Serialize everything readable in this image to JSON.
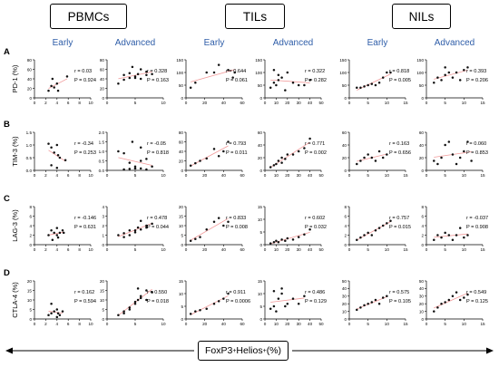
{
  "groups": {
    "g1": "PBMCs",
    "g2": "TILs",
    "g3": "NILs"
  },
  "stages": [
    "Early",
    "Advanced",
    "Early",
    "Advanced",
    "Early",
    "Advanced"
  ],
  "row_letters": [
    "A",
    "B",
    "C",
    "D"
  ],
  "row_ylabels": [
    "PD-1 (%)",
    "TIM-3 (%)",
    "LAG-3 (%)",
    "CTLA-4 (%)"
  ],
  "xaxis": {
    "label": "FoxP3",
    "sup1": "+",
    "mid": "Helios",
    "sup2": "+",
    "unit": " (%)"
  },
  "colors": {
    "stage_text": "#2e5da8",
    "fit_line": "#f29a9a",
    "points": "#111111"
  },
  "chart_data": [
    {
      "type": "scatter",
      "group": "PBMCs",
      "stage": "Early",
      "ylabel": "PD-1 (%)",
      "xticks": [
        "0",
        "2",
        "4",
        "6",
        "8",
        "10"
      ],
      "yticks": [
        "0",
        "20",
        "40",
        "60",
        "80"
      ],
      "xlim": [
        0,
        10
      ],
      "ylim": [
        0,
        80
      ],
      "r": "r = 0.03",
      "p": "P = 0.924",
      "x": [
        2.5,
        3,
        3.5,
        4,
        4.2,
        3.2,
        5.8
      ],
      "y": [
        15,
        25,
        22,
        30,
        15,
        40,
        45
      ]
    },
    {
      "type": "scatter",
      "group": "PBMCs",
      "stage": "Advanced",
      "ylabel": "PD-1 (%)",
      "xticks": [
        "0",
        "5",
        "10"
      ],
      "yticks": [
        "0",
        "20",
        "40",
        "60",
        "80"
      ],
      "xlim": [
        0,
        10
      ],
      "ylim": [
        0,
        80
      ],
      "r": "r = 0.328",
      "p": "P = 0.163",
      "x": [
        2,
        3,
        4,
        5,
        5.5,
        6,
        7,
        3,
        4,
        5,
        6,
        7,
        8,
        4.5
      ],
      "y": [
        30,
        38,
        42,
        45,
        50,
        40,
        55,
        48,
        52,
        42,
        60,
        48,
        50,
        65
      ]
    },
    {
      "type": "scatter",
      "group": "TILs",
      "stage": "Early",
      "ylabel": "PD-1 (%)",
      "xticks": [
        "0",
        "20",
        "40",
        "60"
      ],
      "yticks": [
        "0",
        "50",
        "100",
        "150"
      ],
      "xlim": [
        0,
        60
      ],
      "ylim": [
        0,
        150
      ],
      "r": "r = 0.644",
      "p": "P = 0.061",
      "x": [
        5,
        10,
        22,
        30,
        45,
        50,
        52,
        35
      ],
      "y": [
        40,
        60,
        100,
        100,
        110,
        80,
        100,
        130
      ]
    },
    {
      "type": "scatter",
      "group": "TILs",
      "stage": "Advanced",
      "ylabel": "PD-1 (%)",
      "xticks": [
        "0",
        "10",
        "20",
        "30",
        "40",
        "50"
      ],
      "yticks": [
        "0",
        "50",
        "100",
        "150"
      ],
      "xlim": [
        0,
        50
      ],
      "ylim": [
        0,
        150
      ],
      "r": "r = 0.322",
      "p": "P = 0.282",
      "x": [
        5,
        8,
        10,
        12,
        15,
        18,
        20,
        25,
        30,
        35,
        40,
        8,
        12
      ],
      "y": [
        40,
        60,
        50,
        90,
        80,
        30,
        100,
        60,
        50,
        50,
        70,
        110,
        70
      ]
    },
    {
      "type": "scatter",
      "group": "NILs",
      "stage": "Early",
      "ylabel": "PD-1 (%)",
      "xticks": [
        "0",
        "5",
        "10",
        "15"
      ],
      "yticks": [
        "0",
        "50",
        "100",
        "150"
      ],
      "xlim": [
        0,
        15
      ],
      "ylim": [
        0,
        150
      ],
      "r": "r = 0.818",
      "p": "P = 0.005",
      "x": [
        2,
        3,
        4,
        5,
        6,
        7,
        8,
        9,
        10,
        11
      ],
      "y": [
        40,
        40,
        45,
        50,
        55,
        50,
        60,
        80,
        100,
        100
      ]
    },
    {
      "type": "scatter",
      "group": "NILs",
      "stage": "Advanced",
      "ylabel": "PD-1 (%)",
      "xticks": [
        "0",
        "5",
        "10",
        "15"
      ],
      "yticks": [
        "0",
        "50",
        "100",
        "150"
      ],
      "xlim": [
        0,
        15
      ],
      "ylim": [
        0,
        150
      ],
      "r": "r = 0.393",
      "p": "P = 0.206",
      "x": [
        2,
        3,
        4,
        5,
        6,
        7,
        8,
        9,
        10,
        11,
        5
      ],
      "y": [
        60,
        80,
        70,
        90,
        100,
        80,
        100,
        70,
        110,
        120,
        120
      ]
    },
    {
      "type": "scatter",
      "group": "PBMCs",
      "stage": "Early",
      "ylabel": "TIM-3 (%)",
      "xticks": [
        "0",
        "2",
        "4",
        "6",
        "8",
        "10"
      ],
      "yticks": [
        "0.0",
        "0.5",
        "1.0",
        "1.5"
      ],
      "xlim": [
        0,
        10
      ],
      "ylim": [
        0,
        1.5
      ],
      "r": "r = -0.34",
      "p": "P = 0.253",
      "x": [
        2.5,
        3,
        3.5,
        4,
        4.2,
        4.5,
        5.5,
        3,
        4
      ],
      "y": [
        1.05,
        0.9,
        0.7,
        1.0,
        0.6,
        0.5,
        0.4,
        0.2,
        0.1
      ]
    },
    {
      "type": "scatter",
      "group": "PBMCs",
      "stage": "Advanced",
      "ylabel": "TIM-3 (%)",
      "xticks": [
        "0",
        "5",
        "10"
      ],
      "yticks": [
        "0.0",
        "0.5",
        "1.0",
        "1.5",
        "2.0"
      ],
      "xlim": [
        0,
        10
      ],
      "ylim": [
        0,
        2.0
      ],
      "r": "r = -0.05",
      "p": "P = 0.818",
      "x": [
        2,
        3,
        4,
        5,
        5,
        6,
        7,
        3,
        4,
        5,
        6,
        7,
        8,
        4.5,
        6
      ],
      "y": [
        1.0,
        0.9,
        0.4,
        0.2,
        0.1,
        0.5,
        0.6,
        0.05,
        0.08,
        0.1,
        0.1,
        0.05,
        0.2,
        1.5,
        1.2
      ]
    },
    {
      "type": "scatter",
      "group": "TILs",
      "stage": "Early",
      "ylabel": "TIM-3 (%)",
      "xticks": [
        "0",
        "20",
        "40",
        "60"
      ],
      "yticks": [
        "0",
        "20",
        "40",
        "60",
        "80"
      ],
      "xlim": [
        0,
        60
      ],
      "ylim": [
        0,
        80
      ],
      "r": "r = 0.793",
      "p": "P = 0.011",
      "x": [
        5,
        10,
        15,
        22,
        30,
        35,
        40,
        45
      ],
      "y": [
        10,
        15,
        20,
        25,
        45,
        30,
        40,
        60
      ]
    },
    {
      "type": "scatter",
      "group": "TILs",
      "stage": "Advanced",
      "ylabel": "TIM-3 (%)",
      "xticks": [
        "0",
        "10",
        "20",
        "30",
        "40",
        "50"
      ],
      "yticks": [
        "0",
        "20",
        "40",
        "60"
      ],
      "xlim": [
        0,
        50
      ],
      "ylim": [
        0,
        60
      ],
      "r": "r = 0.771",
      "p": "P = 0.002",
      "x": [
        5,
        8,
        10,
        12,
        15,
        18,
        20,
        25,
        30,
        35,
        40,
        15
      ],
      "y": [
        5,
        8,
        10,
        15,
        20,
        18,
        25,
        25,
        30,
        35,
        50,
        12
      ]
    },
    {
      "type": "scatter",
      "group": "NILs",
      "stage": "Early",
      "ylabel": "TIM-3 (%)",
      "xticks": [
        "0",
        "5",
        "10",
        "15"
      ],
      "yticks": [
        "0",
        "20",
        "40",
        "60"
      ],
      "xlim": [
        0,
        15
      ],
      "ylim": [
        0,
        60
      ],
      "r": "r = 0.163",
      "p": "P = 0.656",
      "x": [
        2,
        3,
        4,
        5,
        6,
        7,
        8,
        9,
        10
      ],
      "y": [
        10,
        15,
        20,
        25,
        20,
        15,
        30,
        20,
        25
      ]
    },
    {
      "type": "scatter",
      "group": "NILs",
      "stage": "Advanced",
      "ylabel": "TIM-3 (%)",
      "xticks": [
        "0",
        "5",
        "10",
        "15"
      ],
      "yticks": [
        "0",
        "20",
        "40",
        "60"
      ],
      "xlim": [
        0,
        15
      ],
      "ylim": [
        0,
        60
      ],
      "r": "r = 0.060",
      "p": "P = 0.853",
      "x": [
        2,
        3,
        4,
        5,
        6,
        7,
        8,
        9,
        10,
        11,
        12
      ],
      "y": [
        15,
        10,
        20,
        40,
        45,
        25,
        10,
        20,
        30,
        45,
        15
      ]
    },
    {
      "type": "scatter",
      "group": "PBMCs",
      "stage": "Early",
      "ylabel": "LAG-3 (%)",
      "xticks": [
        "0",
        "2",
        "4",
        "6",
        "8",
        "10"
      ],
      "yticks": [
        "0",
        "2",
        "4",
        "6",
        "8"
      ],
      "xlim": [
        0,
        10
      ],
      "ylim": [
        0,
        8
      ],
      "r": "r = -0.146",
      "p": "P = 0.631",
      "x": [
        2.5,
        3,
        3.5,
        4,
        4.2,
        4.5,
        5,
        3.2,
        4,
        5.2
      ],
      "y": [
        2,
        3,
        2.5,
        3.5,
        1.5,
        2.5,
        3,
        1,
        2,
        2.5
      ]
    },
    {
      "type": "scatter",
      "group": "PBMCs",
      "stage": "Advanced",
      "ylabel": "LAG-3 (%)",
      "xticks": [
        "0",
        "5",
        "10"
      ],
      "yticks": [
        "0",
        "1",
        "2",
        "3",
        "4"
      ],
      "xlim": [
        0,
        10
      ],
      "ylim": [
        0,
        4
      ],
      "r": "r = 0.478",
      "p": "P = 0.044",
      "x": [
        2,
        3,
        4,
        5,
        5.5,
        6,
        7,
        3,
        4,
        5,
        6,
        7,
        8
      ],
      "y": [
        1,
        1.2,
        1.5,
        1.3,
        1.8,
        1.6,
        2.0,
        0.8,
        1.0,
        1.5,
        2.5,
        1.8,
        2.2
      ]
    },
    {
      "type": "scatter",
      "group": "TILs",
      "stage": "Early",
      "ylabel": "LAG-3 (%)",
      "xticks": [
        "0",
        "20",
        "40",
        "60"
      ],
      "yticks": [
        "0",
        "5",
        "10",
        "15",
        "20"
      ],
      "xlim": [
        0,
        60
      ],
      "ylim": [
        0,
        20
      ],
      "r": "r = 0.833",
      "p": "P = 0.008",
      "x": [
        5,
        10,
        15,
        22,
        30,
        35,
        40,
        45
      ],
      "y": [
        2,
        3,
        4,
        8,
        12,
        14,
        10,
        12
      ]
    },
    {
      "type": "scatter",
      "group": "TILs",
      "stage": "Advanced",
      "ylabel": "LAG-3 (%)",
      "xticks": [
        "0",
        "10",
        "20",
        "30",
        "40",
        "50"
      ],
      "yticks": [
        "0",
        "5",
        "10",
        "15"
      ],
      "xlim": [
        0,
        50
      ],
      "ylim": [
        0,
        15
      ],
      "r": "r = 0.602",
      "p": "P = 0.032",
      "x": [
        5,
        8,
        10,
        12,
        15,
        18,
        20,
        25,
        30,
        35,
        40
      ],
      "y": [
        0.5,
        1,
        1.5,
        1,
        2,
        1.5,
        2.5,
        2,
        3,
        4,
        6
      ]
    },
    {
      "type": "scatter",
      "group": "NILs",
      "stage": "Early",
      "ylabel": "LAG-3 (%)",
      "xticks": [
        "0",
        "5",
        "10",
        "15"
      ],
      "yticks": [
        "0",
        "2",
        "4",
        "6",
        "8"
      ],
      "xlim": [
        0,
        15
      ],
      "ylim": [
        0,
        8
      ],
      "r": "r = 0.757",
      "p": "P = 0.015",
      "x": [
        2,
        3,
        4,
        5,
        6,
        7,
        8,
        9,
        10,
        11
      ],
      "y": [
        1,
        1.5,
        2,
        2.5,
        2,
        3,
        3.5,
        4,
        4.5,
        5
      ]
    },
    {
      "type": "scatter",
      "group": "NILs",
      "stage": "Advanced",
      "ylabel": "LAG-3 (%)",
      "xticks": [
        "0",
        "5",
        "10",
        "15"
      ],
      "yticks": [
        "0",
        "2",
        "4",
        "6",
        "8"
      ],
      "xlim": [
        0,
        15
      ],
      "ylim": [
        0,
        8
      ],
      "r": "r = -0.037",
      "p": "P = 0.908",
      "x": [
        2,
        3,
        4,
        5,
        6,
        7,
        8,
        9,
        10,
        11
      ],
      "y": [
        1,
        2,
        1.5,
        2.5,
        2,
        1,
        2,
        3.5,
        1.5,
        2
      ]
    },
    {
      "type": "scatter",
      "group": "PBMCs",
      "stage": "Early",
      "ylabel": "CTLA-4 (%)",
      "xticks": [
        "0",
        "2",
        "4",
        "6",
        "8",
        "10"
      ],
      "yticks": [
        "0",
        "5",
        "10",
        "15",
        "20"
      ],
      "xlim": [
        0,
        10
      ],
      "ylim": [
        0,
        20
      ],
      "r": "r = 0.162",
      "p": "P = 0.594",
      "x": [
        2.5,
        3,
        3.5,
        4,
        4.2,
        4.5,
        5,
        3,
        4
      ],
      "y": [
        2,
        3,
        4,
        5,
        3,
        2,
        4,
        8,
        1
      ]
    },
    {
      "type": "scatter",
      "group": "PBMCs",
      "stage": "Advanced",
      "ylabel": "CTLA-4 (%)",
      "xticks": [
        "0",
        "5",
        "10"
      ],
      "yticks": [
        "0",
        "5",
        "10",
        "15",
        "20"
      ],
      "xlim": [
        0,
        10
      ],
      "ylim": [
        0,
        20
      ],
      "r": "r = 0.550",
      "p": "P = 0.018",
      "x": [
        2,
        3,
        4,
        5,
        5.5,
        6,
        7,
        3,
        4,
        5,
        6,
        7,
        8,
        5.5
      ],
      "y": [
        2,
        4,
        5,
        8,
        10,
        12,
        15,
        3,
        6,
        9,
        11,
        10,
        14,
        16
      ]
    },
    {
      "type": "scatter",
      "group": "TILs",
      "stage": "Early",
      "ylabel": "CTLA-4 (%)",
      "xticks": [
        "0",
        "20",
        "40",
        "60"
      ],
      "yticks": [
        "0",
        "5",
        "10",
        "15"
      ],
      "xlim": [
        0,
        60
      ],
      "ylim": [
        0,
        15
      ],
      "r": "r = 0.911",
      "p": "P = 0.0006",
      "x": [
        5,
        10,
        15,
        22,
        30,
        35,
        40,
        45
      ],
      "y": [
        2,
        3,
        3.5,
        4,
        6,
        7,
        8,
        10
      ]
    },
    {
      "type": "scatter",
      "group": "TILs",
      "stage": "Advanced",
      "ylabel": "CTLA-4 (%)",
      "xticks": [
        "0",
        "10",
        "20",
        "30",
        "40",
        "50"
      ],
      "yticks": [
        "0",
        "5",
        "10",
        "15"
      ],
      "xlim": [
        0,
        50
      ],
      "ylim": [
        0,
        15
      ],
      "r": "r = 0.486",
      "p": "P = 0.129",
      "x": [
        5,
        8,
        10,
        12,
        15,
        18,
        20,
        25,
        30,
        35,
        8,
        15
      ],
      "y": [
        4,
        5,
        3,
        8,
        10,
        5,
        6,
        8,
        6,
        9,
        11,
        12
      ]
    },
    {
      "type": "scatter",
      "group": "NILs",
      "stage": "Early",
      "ylabel": "CTLA-4 (%)",
      "xticks": [
        "0",
        "5",
        "10",
        "15"
      ],
      "yticks": [
        "0",
        "10",
        "20",
        "30",
        "40",
        "50"
      ],
      "xlim": [
        0,
        15
      ],
      "ylim": [
        0,
        50
      ],
      "r": "r = 0.575",
      "p": "P = 0.105",
      "x": [
        2,
        3,
        4,
        5,
        6,
        7,
        8,
        9,
        10
      ],
      "y": [
        12,
        15,
        18,
        20,
        22,
        25,
        20,
        28,
        30
      ]
    },
    {
      "type": "scatter",
      "group": "NILs",
      "stage": "Advanced",
      "ylabel": "CTLA-4 (%)",
      "xticks": [
        "0",
        "5",
        "10",
        "15"
      ],
      "yticks": [
        "0",
        "10",
        "20",
        "30",
        "40",
        "50"
      ],
      "xlim": [
        0,
        15
      ],
      "ylim": [
        0,
        50
      ],
      "r": "r = 0.549",
      "p": "P = 0.125",
      "x": [
        2,
        3,
        4,
        5,
        6,
        7,
        8,
        9,
        10,
        11
      ],
      "y": [
        10,
        15,
        20,
        22,
        25,
        30,
        35,
        25,
        28,
        32
      ]
    }
  ]
}
